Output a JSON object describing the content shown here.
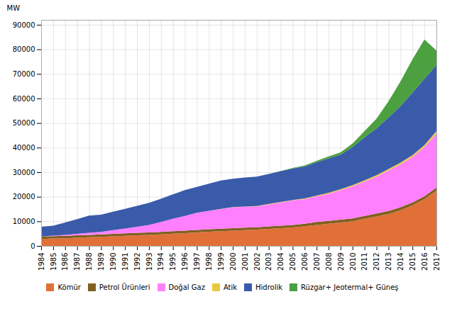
{
  "chart_data": {
    "type": "area",
    "stacked": true,
    "x": [
      1984,
      1985,
      1986,
      1987,
      1988,
      1989,
      1990,
      1991,
      1992,
      1993,
      1994,
      1995,
      1996,
      1997,
      1998,
      1999,
      2000,
      2001,
      2002,
      2003,
      2004,
      2005,
      2006,
      2007,
      2008,
      2009,
      2010,
      2011,
      2012,
      2013,
      2014,
      2015,
      2016,
      2017
    ],
    "series": [
      {
        "name": "Kömür",
        "color": "#E07038",
        "values": [
          2800,
          3000,
          3100,
          3300,
          3500,
          3700,
          3900,
          4100,
          4300,
          4500,
          4700,
          5000,
          5200,
          5500,
          5800,
          6000,
          6200,
          6400,
          6600,
          6900,
          7200,
          7500,
          8000,
          8500,
          9000,
          9500,
          10000,
          11000,
          12000,
          13000,
          14500,
          16500,
          19000,
          22500
        ]
      },
      {
        "name": "Petrol Ürünleri",
        "color": "#806020",
        "values": [
          1000,
          1000,
          1000,
          1000,
          1000,
          1000,
          1000,
          1000,
          1000,
          1000,
          1000,
          1000,
          1000,
          1000,
          1000,
          1000,
          1000,
          1000,
          1000,
          1000,
          1000,
          1000,
          1000,
          1200,
          1200,
          1200,
          1200,
          1200,
          1200,
          1200,
          1200,
          1200,
          1200,
          1200
        ]
      },
      {
        "name": "Doğal Gaz",
        "color": "#FF80FF",
        "values": [
          0,
          200,
          400,
          600,
          800,
          1000,
          1500,
          2000,
          2500,
          3000,
          4000,
          5000,
          6000,
          7000,
          7500,
          8000,
          8500,
          8500,
          8500,
          9000,
          9500,
          10000,
          10000,
          10500,
          11000,
          12000,
          13000,
          14000,
          15000,
          16500,
          17500,
          18500,
          20000,
          22000
        ]
      },
      {
        "name": "Atik",
        "color": "#E8C840",
        "values": [
          0,
          0,
          0,
          0,
          0,
          0,
          0,
          0,
          0,
          0,
          0,
          0,
          0,
          0,
          0,
          100,
          100,
          100,
          100,
          200,
          200,
          200,
          300,
          300,
          400,
          400,
          500,
          500,
          600,
          600,
          700,
          700,
          800,
          1000
        ]
      },
      {
        "name": "Hidrolik",
        "color": "#3A5BAA",
        "values": [
          4000,
          4000,
          5000,
          6000,
          7000,
          7000,
          7500,
          8000,
          8500,
          9000,
          9500,
          10000,
          10500,
          10500,
          11000,
          11500,
          11500,
          11800,
          12000,
          12200,
          12500,
          12800,
          13000,
          13500,
          14000,
          14000,
          15500,
          17500,
          19000,
          21000,
          23000,
          25500,
          27000,
          27000
        ]
      },
      {
        "name": "Rüzgar+ Jeotermal+ Güneş",
        "color": "#4CA040",
        "values": [
          0,
          0,
          0,
          0,
          0,
          0,
          0,
          0,
          0,
          0,
          0,
          0,
          0,
          0,
          0,
          0,
          0,
          0,
          0,
          0,
          100,
          200,
          400,
          600,
          800,
          1000,
          1500,
          2500,
          4000,
          6500,
          10000,
          13500,
          16000,
          5800
        ]
      }
    ],
    "ylabel": "MW",
    "xlim": [
      1984,
      2017
    ],
    "xticks": [
      1984,
      1985,
      1986,
      1987,
      1988,
      1989,
      1990,
      1991,
      1992,
      1993,
      1994,
      1995,
      1996,
      1997,
      1998,
      1999,
      2000,
      2001,
      2002,
      2003,
      2004,
      2005,
      2006,
      2007,
      2008,
      2009,
      2010,
      2011,
      2012,
      2013,
      2014,
      2015,
      2016,
      2017
    ],
    "ylim": [
      0,
      92000
    ],
    "yticks": [
      0,
      10000,
      20000,
      30000,
      40000,
      50000,
      60000,
      70000,
      80000,
      90000
    ],
    "grid": true,
    "legend": "bottom"
  }
}
